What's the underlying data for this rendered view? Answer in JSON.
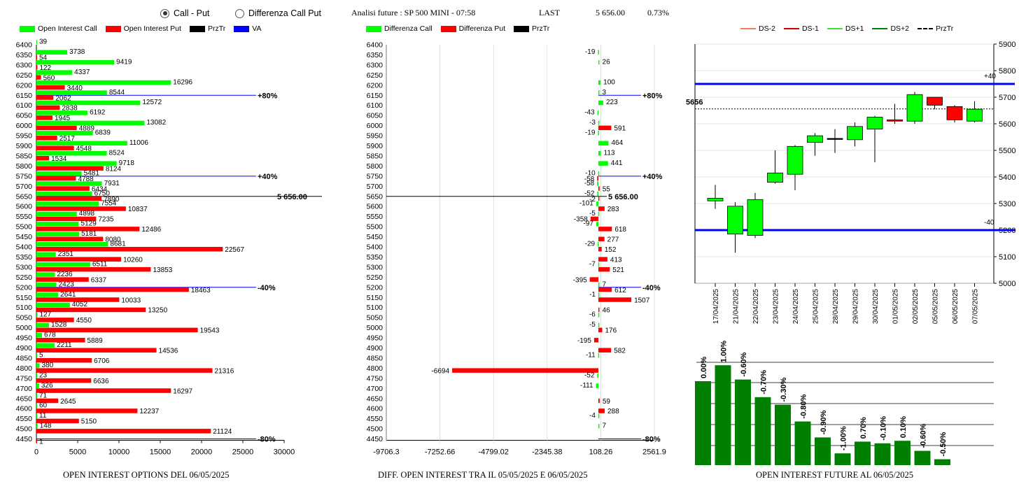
{
  "header": {
    "radio_call_put": "Call - Put",
    "radio_diff": "Differenza Call Put",
    "radio_selected": "call_put",
    "title": "Analisi future : SP 500 MINI - 07:58",
    "last_label": "LAST",
    "last_value": "5 656.00",
    "last_change": "0.73%"
  },
  "legend_left": {
    "call": "Open Interest Call",
    "put": "Open Interest Put",
    "prztr": "PrzTr",
    "va": "VA"
  },
  "legend_mid": {
    "call": "Differenza Call",
    "put": "Differenza Put",
    "prztr": "PrzTr"
  },
  "legend_right": {
    "ds_m2": "DS-2",
    "ds_m1": "DS-1",
    "ds_p1": "DS+1",
    "ds_p2": "DS+2",
    "prztr": "PrzTr"
  },
  "footers": {
    "left": "OPEN INTEREST OPTIONS DEL 06/05/2025",
    "mid": "DIFF. OPEN INTEREST TRA IL 05/05/2025 E 06/05/2025",
    "right": "OPEN INTEREST FUTURE AL 06/05/2025"
  },
  "colors": {
    "call": "#00ff00",
    "put": "#ff0000",
    "va": "#0000ff",
    "bull": "#00ff00",
    "bear": "#ff0000",
    "oi_bar": "#008000"
  },
  "chart_data": [
    {
      "type": "bar",
      "orientation": "horizontal",
      "strikes": [
        6400,
        6350,
        6300,
        6250,
        6200,
        6150,
        6100,
        6050,
        6000,
        5950,
        5900,
        5850,
        5800,
        5750,
        5700,
        5650,
        5600,
        5550,
        5500,
        5450,
        5400,
        5350,
        5300,
        5250,
        5200,
        5150,
        5100,
        5050,
        5000,
        4950,
        4900,
        4850,
        4800,
        4750,
        4700,
        4650,
        4600,
        4550,
        4500,
        4450
      ],
      "series": [
        {
          "name": "Open Interest Call",
          "values": [
            39,
            3738,
            9419,
            4337,
            16296,
            8544,
            12572,
            6192,
            13082,
            6839,
            11006,
            8524,
            9718,
            5481,
            7931,
            6750,
            7554,
            4898,
            5129,
            5181,
            8681,
            2351,
            6511,
            2236,
            2423,
            2641,
            4052,
            127,
            1528,
            678,
            2211,
            5,
            380,
            23,
            326,
            71,
            60,
            11,
            148,
            null
          ]
        },
        {
          "name": "Open Interest Put",
          "values": [
            null,
            54,
            122,
            560,
            3440,
            2062,
            2838,
            1945,
            4889,
            2517,
            4548,
            1534,
            8124,
            4788,
            6434,
            7890,
            10837,
            7235,
            12486,
            8080,
            22567,
            10260,
            13853,
            6337,
            18463,
            10033,
            13250,
            4550,
            19543,
            5889,
            14536,
            6706,
            21316,
            6636,
            16297,
            2645,
            12237,
            5150,
            21124,
            1
          ]
        }
      ],
      "xticks": [
        "0",
        "5000",
        "10000",
        "15000",
        "20000",
        "25000",
        "30000"
      ],
      "xlim": [
        0,
        30000
      ],
      "reference_lines": [
        {
          "strike": 6150,
          "label": "+80%"
        },
        {
          "strike": 5750,
          "label": "+40%"
        },
        {
          "strike": 5650,
          "label": "5 656.00"
        },
        {
          "strike": 5200,
          "label": "-40%"
        },
        {
          "strike": 4450,
          "label": "-80%"
        }
      ]
    },
    {
      "type": "bar",
      "orientation": "horizontal",
      "strikes": [
        6400,
        6350,
        6300,
        6250,
        6200,
        6150,
        6100,
        6050,
        6000,
        5950,
        5900,
        5850,
        5800,
        5750,
        5700,
        5650,
        5600,
        5550,
        5500,
        5450,
        5400,
        5350,
        5300,
        5250,
        5200,
        5150,
        5100,
        5050,
        5000,
        4950,
        4900,
        4850,
        4800,
        4750,
        4700,
        4650,
        4600,
        4550,
        4500,
        4450
      ],
      "series": [
        {
          "name": "Differenza Call",
          "values": [
            null,
            -19,
            26,
            null,
            100,
            3,
            223,
            -43,
            -3,
            -19,
            464,
            113,
            441,
            -10,
            -58,
            -52,
            -101,
            -5,
            -97,
            null,
            -29,
            null,
            -7,
            null,
            7,
            -1,
            null,
            -6,
            -5,
            null,
            null,
            -11,
            null,
            -52,
            -111,
            null,
            null,
            -4,
            7,
            null
          ]
        },
        {
          "name": "Differenza Put",
          "values": [
            null,
            null,
            null,
            null,
            null,
            null,
            null,
            null,
            591,
            null,
            null,
            null,
            null,
            -58,
            55,
            -2,
            283,
            -358,
            618,
            277,
            152,
            413,
            521,
            -395,
            612,
            1507,
            46,
            null,
            176,
            -195,
            582,
            null,
            -6694,
            null,
            null,
            59,
            288,
            null,
            null,
            null
          ]
        }
      ],
      "xticks": [
        "-9706.3",
        "-7252.66",
        "-4799.02",
        "-2345.38",
        "108.26",
        "2561.9"
      ],
      "xlim": [
        -9706.3,
        2561.9
      ],
      "reference_lines": [
        {
          "strike": 6150,
          "label": "+80%"
        },
        {
          "strike": 5750,
          "label": "+40%"
        },
        {
          "strike": 5650,
          "label": "5 656.00"
        },
        {
          "strike": 5200,
          "label": "-40%"
        },
        {
          "strike": 4450,
          "label": "-80%"
        }
      ]
    },
    {
      "type": "candlestick",
      "dates": [
        "17/04/2025",
        "21/04/2025",
        "22/04/2025",
        "23/04/2025",
        "24/04/2025",
        "25/04/2025",
        "28/04/2025",
        "29/04/2025",
        "30/04/2025",
        "01/05/2025",
        "02/05/2025",
        "05/05/2025",
        "06/05/2025",
        "07/05/2025"
      ],
      "open": [
        5310,
        5185,
        5180,
        5380,
        5410,
        5530,
        5545,
        5540,
        5580,
        5615,
        5610,
        5700,
        5665,
        5610
      ],
      "close": [
        5320,
        5290,
        5315,
        5415,
        5515,
        5555,
        5545,
        5590,
        5625,
        5610,
        5710,
        5670,
        5615,
        5655
      ],
      "high": [
        5370,
        5305,
        5340,
        5500,
        5520,
        5565,
        5580,
        5605,
        5630,
        5675,
        5720,
        5700,
        5670,
        5685
      ],
      "low": [
        5280,
        5115,
        5170,
        5375,
        5350,
        5480,
        5490,
        5515,
        5455,
        5600,
        5600,
        5655,
        5605,
        5605
      ],
      "yticks": [
        "5900",
        "5800",
        "5700",
        "5600",
        "5500",
        "5400",
        "5300",
        "5200",
        "5100",
        "5000"
      ],
      "ylim": [
        5000,
        5900
      ],
      "level_lines": [
        {
          "value": 5750,
          "label": "+40"
        },
        {
          "value": 5200,
          "label": "-40"
        }
      ],
      "last_line": {
        "value": 5656,
        "label": "5656"
      }
    },
    {
      "type": "bar",
      "values": [
        100,
        119,
        102,
        81,
        72,
        52,
        33,
        14,
        28,
        26,
        29,
        17,
        7
      ],
      "labels": [
        "0.00%",
        "1.00%",
        "-0.60%",
        "-0.70%",
        "-0.30%",
        "-0.80%",
        "-0.90%",
        "-1.00%",
        "0.70%",
        "-0.10%",
        "0.10%",
        "-0.60%",
        "-0.50%"
      ]
    }
  ]
}
